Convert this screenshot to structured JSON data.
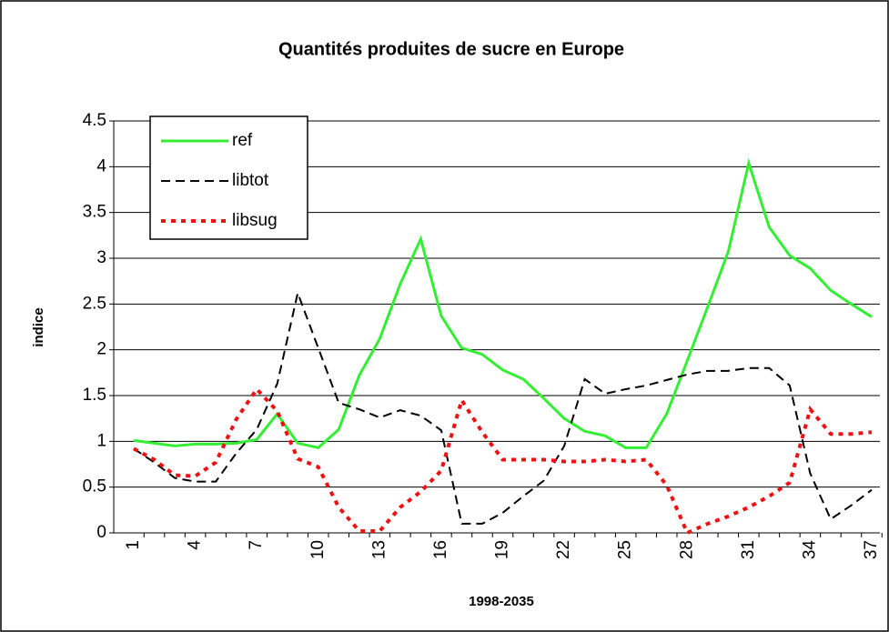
{
  "chart_data": {
    "type": "line",
    "title": "Quantités produites de sucre en Europe",
    "x_label": "1998-2035",
    "y_label": "indice",
    "categories": [
      1,
      null,
      null,
      4,
      null,
      null,
      7,
      null,
      null,
      10,
      null,
      null,
      13,
      null,
      null,
      16,
      null,
      null,
      19,
      null,
      null,
      22,
      null,
      null,
      25,
      null,
      null,
      28,
      null,
      null,
      31,
      null,
      null,
      34,
      null,
      null,
      37
    ],
    "series": [
      {
        "name": "ref",
        "color": "#33ee33",
        "dash": "solid",
        "values": [
          1.01,
          0.98,
          0.95,
          0.97,
          0.97,
          0.98,
          1.02,
          1.3,
          0.98,
          0.93,
          1.13,
          1.72,
          2.12,
          2.72,
          3.21,
          2.37,
          2.02,
          1.95,
          1.78,
          1.68,
          1.47,
          1.25,
          1.11,
          1.06,
          0.93,
          0.93,
          1.3,
          1.88,
          2.47,
          3.07,
          4.04,
          3.34,
          3.03,
          2.89,
          2.65,
          2.5,
          2.36
        ]
      },
      {
        "name": "libtot",
        "color": "#000000",
        "dash": "dashed",
        "values": [
          0.92,
          0.77,
          0.6,
          0.56,
          0.56,
          0.87,
          1.13,
          1.63,
          2.62,
          2.02,
          1.42,
          1.35,
          1.26,
          1.34,
          1.28,
          1.12,
          0.1,
          0.1,
          0.22,
          0.4,
          0.57,
          0.95,
          1.68,
          1.52,
          1.57,
          1.61,
          1.67,
          1.73,
          1.77,
          1.77,
          1.8,
          1.8,
          1.61,
          0.65,
          0.15,
          0.3,
          0.47
        ]
      },
      {
        "name": "libsug",
        "color": "#ee1111",
        "dash": "dotted",
        "values": [
          0.92,
          0.8,
          0.63,
          0.62,
          0.77,
          1.24,
          1.57,
          1.33,
          0.81,
          0.72,
          0.28,
          0.02,
          0.02,
          0.28,
          0.45,
          0.68,
          1.45,
          1.1,
          0.8,
          0.8,
          0.8,
          0.78,
          0.78,
          0.8,
          0.78,
          0.8,
          0.52,
          0.0,
          0.1,
          0.18,
          0.28,
          0.4,
          0.55,
          1.35,
          1.08,
          1.08,
          1.1
        ]
      }
    ],
    "ylim": [
      0,
      4.5
    ],
    "yticks": [
      0,
      0.5,
      1,
      1.5,
      2,
      2.5,
      3,
      3.5,
      4,
      4.5
    ],
    "grid": true,
    "legend": "upper left"
  }
}
